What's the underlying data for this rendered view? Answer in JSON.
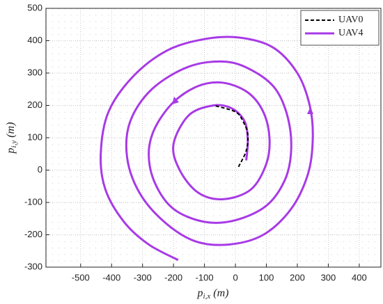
{
  "chart_data": {
    "type": "line",
    "xlabel": {
      "main": "p",
      "sub": "i,x",
      "unit": "(m)"
    },
    "ylabel": {
      "main": "p",
      "sub": "i,y",
      "unit": "(m)"
    },
    "xlim": [
      -612,
      470
    ],
    "ylim": [
      -300,
      500
    ],
    "xticks": [
      -500,
      -400,
      -300,
      -200,
      -100,
      0,
      100,
      200,
      300,
      400
    ],
    "yticks": [
      -300,
      -200,
      -100,
      0,
      100,
      200,
      300,
      400,
      500
    ],
    "grid": true,
    "legend": "upper right",
    "series": [
      {
        "name": "UAV0",
        "color": "#000000",
        "dash": true,
        "x": [
          10,
          35,
          40,
          25,
          0,
          -70
        ],
        "values": [
          10,
          60,
          110,
          150,
          180,
          200
        ]
      },
      {
        "name": "UAV4",
        "color": "#a83ae6",
        "dash": false,
        "x": [
          35,
          40,
          30,
          -10,
          -70,
          -150,
          -200,
          -180,
          -120,
          -40,
          50,
          100,
          110,
          90,
          40,
          -40,
          -120,
          -200,
          -260,
          -280,
          -260,
          -200,
          -100,
          0,
          100,
          160,
          180,
          170,
          130,
          60,
          -30,
          -150,
          -270,
          -340,
          -350,
          -310,
          -230,
          -130,
          -20,
          90,
          180,
          235,
          250,
          240,
          200,
          120,
          10,
          -100,
          -220,
          -330,
          -410,
          -435,
          -420,
          -360,
          -280,
          -185
        ],
        "values": [
          30,
          90,
          150,
          190,
          200,
          170,
          80,
          0,
          -70,
          -90,
          -60,
          20,
          100,
          180,
          240,
          270,
          260,
          210,
          130,
          50,
          -40,
          -120,
          -160,
          -155,
          -110,
          -30,
          60,
          160,
          250,
          305,
          335,
          320,
          250,
          150,
          40,
          -70,
          -160,
          -220,
          -230,
          -200,
          -120,
          -10,
          100,
          200,
          300,
          380,
          410,
          405,
          370,
          290,
          180,
          50,
          -60,
          -160,
          -230,
          -278
        ]
      }
    ]
  }
}
